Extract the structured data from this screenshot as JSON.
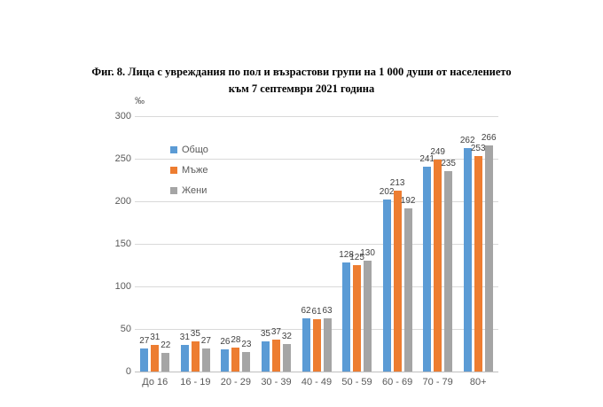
{
  "figure": {
    "title_lines": [
      "Фиг. 8. Лица с увреждания по пол и възрастови групи на 1 000 души от населението",
      "към 7 септември 2021 година"
    ]
  },
  "chart_data": {
    "type": "bar",
    "title": "Фиг. 8. Лица с увреждания по пол и възрастови групи на 1 000 души от населението към 7 септември 2021 година",
    "ylabel": "‰",
    "xlabel": "",
    "categories": [
      "До 16",
      "16 - 19",
      "20 - 29",
      "30 - 39",
      "40 - 49",
      "50 - 59",
      "60 - 69",
      "70 - 79",
      "80+"
    ],
    "series": [
      {
        "name": "Общо",
        "color": "#5B9BD5",
        "values": [
          27,
          31,
          26,
          35,
          62,
          128,
          202,
          241,
          262
        ]
      },
      {
        "name": "Мъже",
        "color": "#ED7D31",
        "values": [
          31,
          35,
          28,
          37,
          61,
          125,
          213,
          249,
          253
        ]
      },
      {
        "name": "Жени",
        "color": "#A5A5A5",
        "values": [
          22,
          27,
          23,
          32,
          63,
          130,
          192,
          235,
          266
        ]
      }
    ],
    "ylim": [
      0,
      300
    ],
    "yticks": [
      0,
      50,
      100,
      150,
      200,
      250,
      300
    ],
    "grid": true,
    "legend_position": "inside-top-left",
    "style_colors": {
      "gridline": "#D9D9D9",
      "axis_line": "#BFBFBF",
      "tick_text": "#595959",
      "data_label_text": "#404040"
    }
  }
}
